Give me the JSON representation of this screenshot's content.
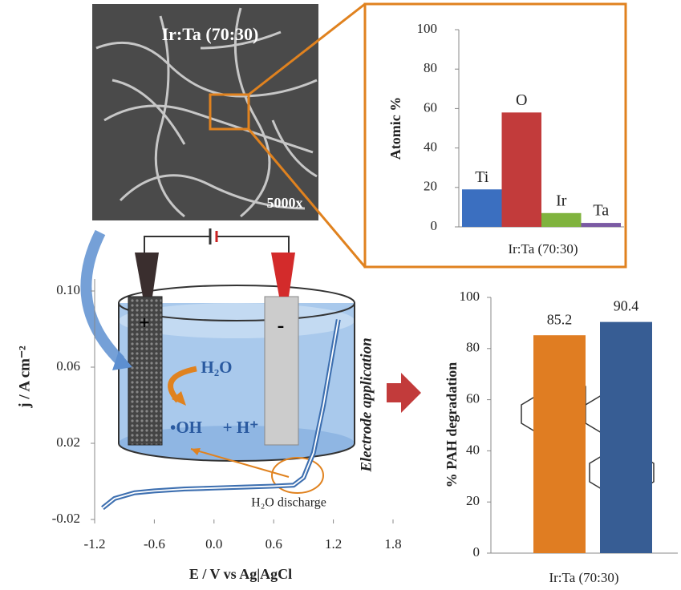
{
  "image": {
    "label": "Ir:Ta (70:30)",
    "magnification": "5000x"
  },
  "chart_data": [
    {
      "type": "bar",
      "ylabel": "Atomic %",
      "xlabel": "Ir:Ta (70:30)",
      "categories": [
        "Ti",
        "O",
        "Ir",
        "Ta"
      ],
      "values": [
        19,
        58,
        7,
        2
      ],
      "colors": [
        "#3b6fc0",
        "#c23b3b",
        "#80b33e",
        "#7a5aa3"
      ],
      "ylim": [
        0,
        100
      ],
      "yticks": [
        0,
        20,
        40,
        60,
        80,
        100
      ]
    },
    {
      "type": "line",
      "xlabel": "E / V vs Ag|AgCl",
      "ylabel": "j / A cm⁻²",
      "x": [
        -1.12,
        -1.0,
        -0.8,
        -0.6,
        -0.3,
        0,
        0.3,
        0.6,
        0.8,
        0.9,
        1.0,
        1.1,
        1.2,
        1.25
      ],
      "values": [
        -0.014,
        -0.009,
        -0.006,
        -0.005,
        -0.004,
        -0.0035,
        -0.003,
        -0.0025,
        -0.002,
        0.002,
        0.015,
        0.04,
        0.07,
        0.085
      ],
      "color": "#3d6fb0",
      "xlim": [
        -1.2,
        1.8
      ],
      "xticks": [
        -1.2,
        -0.6,
        0.0,
        0.6,
        1.2,
        1.8
      ],
      "ylim": [
        -0.02,
        0.1
      ],
      "yticks": [
        -0.02,
        0.02,
        0.06,
        {
          "value": 0.1,
          "label": "0.10"
        }
      ],
      "annotations": [
        "H₂O",
        "•OH",
        "+ H⁺",
        "H₂O discharge",
        "Electrode application"
      ]
    },
    {
      "type": "bar",
      "ylabel": "% PAH degradation",
      "xlabel": "Ir:Ta (70:30)",
      "categories": [
        null,
        null
      ],
      "values": [
        85.2,
        90.4
      ],
      "colors": [
        "#e07d22",
        "#375d94"
      ],
      "ylim": [
        0,
        100
      ],
      "yticks": [
        0,
        20,
        40,
        60,
        80,
        100
      ]
    }
  ]
}
